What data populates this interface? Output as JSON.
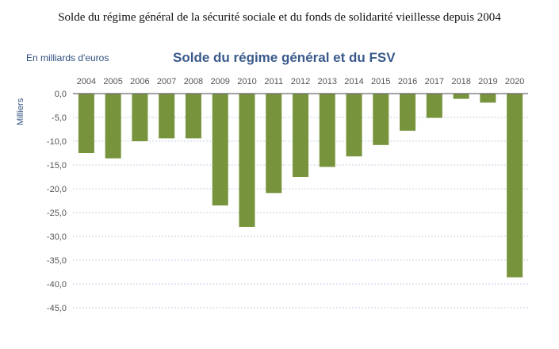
{
  "page_title": "Solde du régime général de la sécurité sociale et du fonds de solidarité vieillesse depuis 2004",
  "unit_label": "En milliards d'euros",
  "chart_data": {
    "type": "bar",
    "title": "Solde du régime général et du FSV",
    "ylabel": "Milliers",
    "xlabel": "",
    "categories": [
      "2004",
      "2005",
      "2006",
      "2007",
      "2008",
      "2009",
      "2010",
      "2011",
      "2012",
      "2013",
      "2014",
      "2015",
      "2016",
      "2017",
      "2018",
      "2019",
      "2020"
    ],
    "values": [
      -12.5,
      -13.6,
      -10.0,
      -9.4,
      -9.4,
      -23.5,
      -28.0,
      -20.9,
      -17.5,
      -15.4,
      -13.2,
      -10.8,
      -7.8,
      -5.1,
      -1.1,
      -1.9,
      -38.6
    ],
    "ylim": [
      -45,
      0
    ],
    "yticks": [
      0,
      -5,
      -10,
      -15,
      -20,
      -25,
      -30,
      -35,
      -40,
      -45
    ],
    "ytick_labels": [
      "0,0",
      "-5,0",
      "-10,0",
      "-15,0",
      "-20,0",
      "-25,0",
      "-30,0",
      "-35,0",
      "-40,0",
      "-45,0"
    ],
    "grid": true,
    "legend": "none",
    "bar_color": "#77933c",
    "grid_color": "#c5cfe0",
    "axis_color": "#6a6a6a"
  }
}
